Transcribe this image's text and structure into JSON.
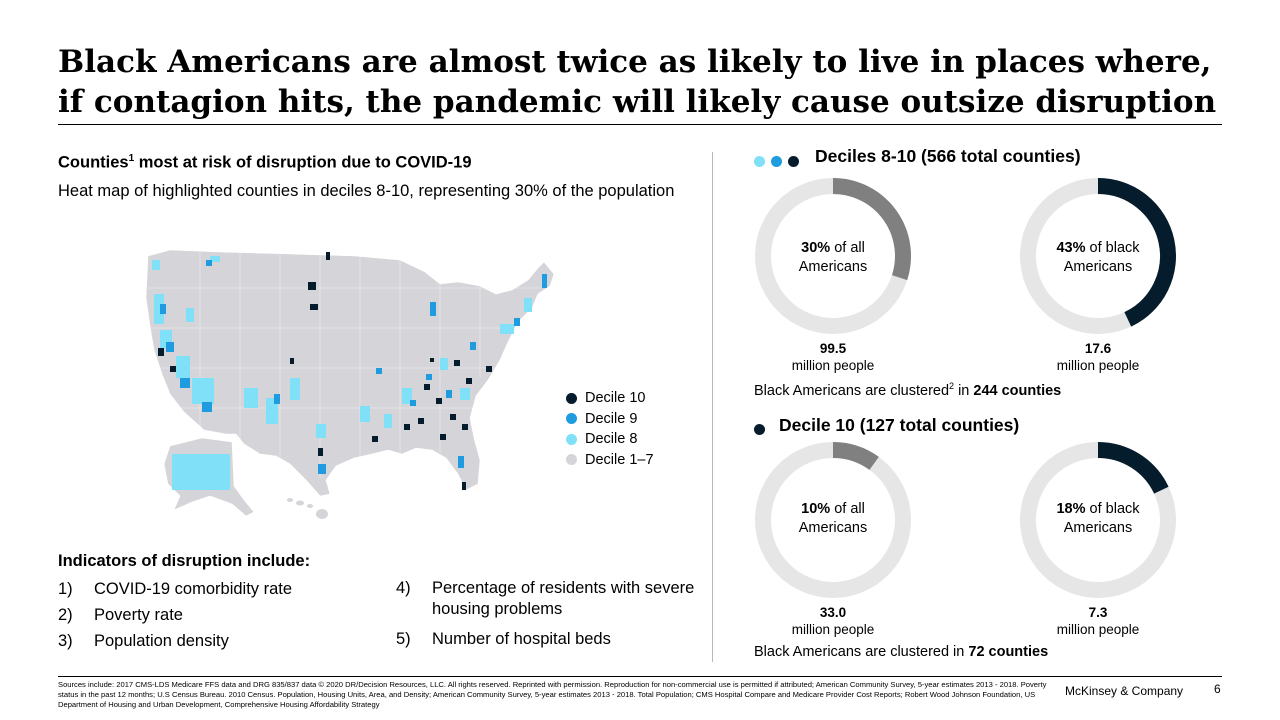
{
  "title": "Black Americans are almost twice as likely to live in places where, if contagion hits, the pandemic will likely cause outsize disruption",
  "left": {
    "heading_prefix": "Counties",
    "heading_sup": "1",
    "heading_suffix": " most at risk of disruption due to COVID-19",
    "subheading": "Heat map of highlighted counties in deciles 8-10, representing 30% of the population"
  },
  "map": {
    "legend": [
      {
        "label": "Decile 10",
        "color": "#051c2c"
      },
      {
        "label": "Decile 9",
        "color": "#1f9be0"
      },
      {
        "label": "Decile 8",
        "color": "#7fe0f7"
      },
      {
        "label": "Decile 1–7",
        "color": "#d4d4d9"
      }
    ]
  },
  "indicators": {
    "heading": "Indicators of disruption include:",
    "items": [
      {
        "num": "1)",
        "text": "COVID-19 comorbidity rate"
      },
      {
        "num": "2)",
        "text": "Poverty rate"
      },
      {
        "num": "3)",
        "text": "Population density"
      },
      {
        "num": "4)",
        "text": "Percentage of residents with severe housing problems"
      },
      {
        "num": "5)",
        "text": "Number of hospital beds"
      }
    ]
  },
  "colors": {
    "dark_navy": "#051c2c",
    "blue": "#1f9be0",
    "cyan": "#7fe0f7",
    "gray_fill": "#808080",
    "gray_track": "#e6e6e6",
    "map_gray": "#d4d4d9"
  },
  "chart_data": [
    {
      "type": "pie",
      "title": "Deciles 8-10 (566 total counties)",
      "label_bold": "30%",
      "label_rest": " of all Americans",
      "value_pct": 30,
      "value_number": "99.5",
      "value_unit": "million people"
    },
    {
      "type": "pie",
      "title": "Deciles 8-10 (566 total counties)",
      "label_bold": "43%",
      "label_rest": " of black Americans",
      "value_pct": 43,
      "value_number": "17.6",
      "value_unit": "million people"
    },
    {
      "type": "pie",
      "title": "Decile 10 (127 total counties)",
      "label_bold": "10%",
      "label_rest": " of all Americans",
      "value_pct": 10,
      "value_number": "33.0",
      "value_unit": "million people"
    },
    {
      "type": "pie",
      "title": "Decile 10 (127 total counties)",
      "label_bold": "18%",
      "label_rest": " of black Americans",
      "value_pct": 18,
      "value_number": "7.3",
      "value_unit": "million people"
    }
  ],
  "sections": {
    "top": {
      "title": "Deciles 8-10 (566 total counties)",
      "note_prefix": "Black Americans are clustered",
      "note_sup": "2",
      "note_mid": " in ",
      "note_bold": "244 counties"
    },
    "bottom": {
      "title": "Decile 10 (127 total counties)",
      "note_prefix": "Black Americans are clustered in ",
      "note_bold": "72 counties"
    }
  },
  "footer": {
    "sources": "Sources include: 2017 CMS-LDS Medicare FFS data and DRG 835/837 data © 2020 DR/Decision Resources, LLC. All rights reserved. Reprinted with permission. Reproduction for non-commercial use is permitted if attributed; American Community Survey, 5-year estimates 2013 - 2018. Poverty status in the past 12 months; U.S Census Bureau. 2010 Census. Population, Housing Units, Area, and Density; American Community Survey, 5-year estimates 2013 - 2018. Total Population; CMS Hospital Compare and Medicare Provider Cost Reports; Robert Wood Johnson Foundation, US Department of Housing and Urban Development, Comprehensive Housing Affordability Strategy",
    "brand": "McKinsey & Company",
    "page_number": "6"
  }
}
